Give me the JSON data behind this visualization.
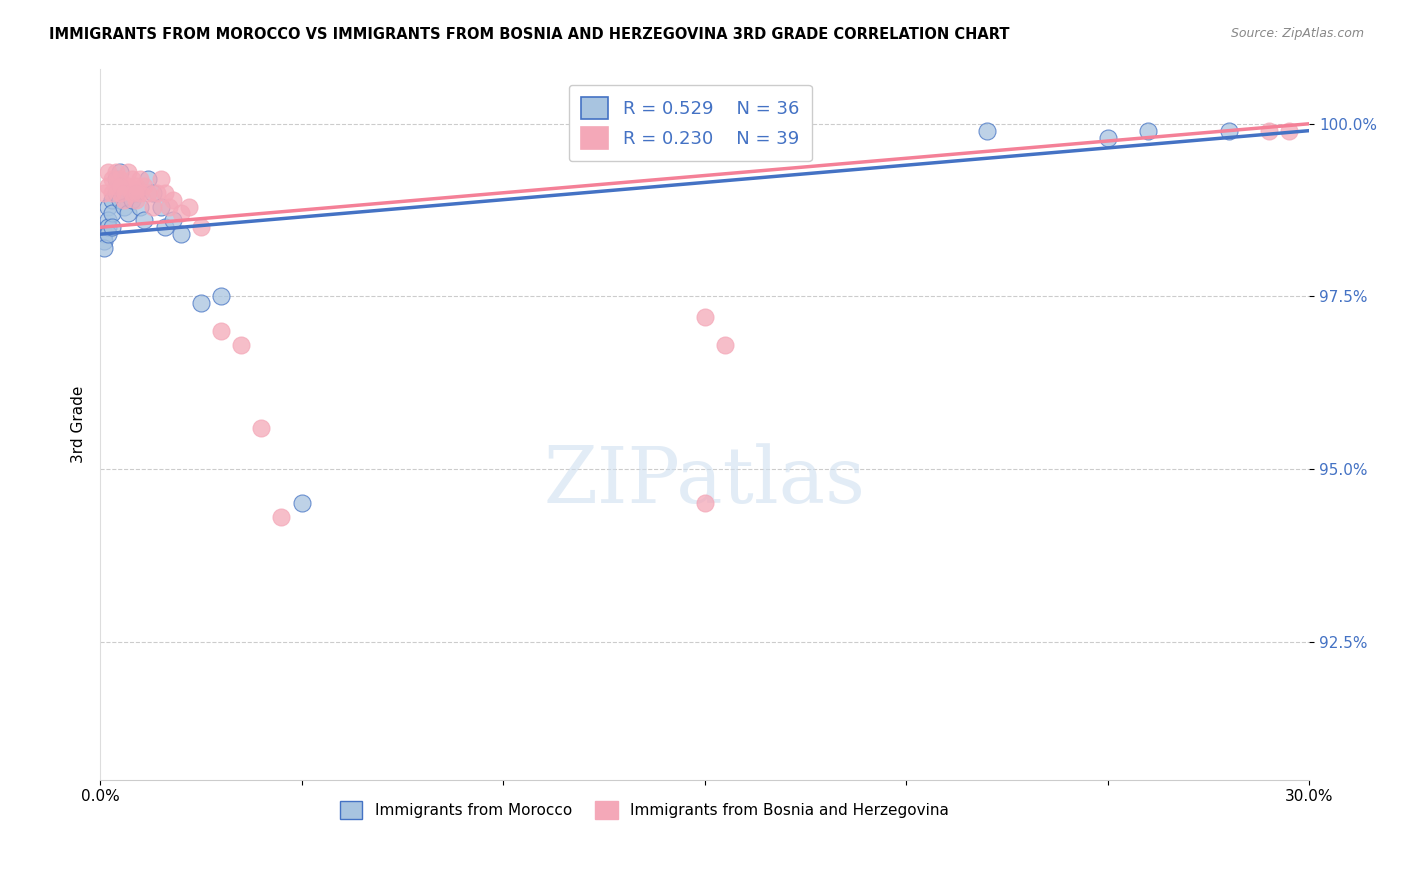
{
  "title": "IMMIGRANTS FROM MOROCCO VS IMMIGRANTS FROM BOSNIA AND HERZEGOVINA 3RD GRADE CORRELATION CHART",
  "source": "Source: ZipAtlas.com",
  "ylabel": "3rd Grade",
  "xlim": [
    0.0,
    0.3
  ],
  "ylim": [
    0.905,
    1.008
  ],
  "yticks": [
    0.925,
    0.95,
    0.975,
    1.0
  ],
  "ytick_labels": [
    "92.5%",
    "95.0%",
    "97.5%",
    "100.0%"
  ],
  "xticks": [
    0.0,
    0.05,
    0.1,
    0.15,
    0.2,
    0.25,
    0.3
  ],
  "xtick_labels": [
    "0.0%",
    "",
    "",
    "",
    "",
    "",
    "30.0%"
  ],
  "color_morocco": "#a8c4e0",
  "color_bosnia": "#f4a8b8",
  "color_line_morocco": "#4472c4",
  "color_line_bosnia": "#f48097",
  "morocco_x": [
    0.001,
    0.001,
    0.001,
    0.002,
    0.002,
    0.002,
    0.002,
    0.003,
    0.003,
    0.003,
    0.004,
    0.004,
    0.005,
    0.005,
    0.005,
    0.006,
    0.006,
    0.007,
    0.008,
    0.009,
    0.01,
    0.011,
    0.012,
    0.013,
    0.015,
    0.016,
    0.018,
    0.02,
    0.025,
    0.03,
    0.05,
    0.16,
    0.22,
    0.25,
    0.26,
    0.28
  ],
  "morocco_y": [
    0.984,
    0.983,
    0.982,
    0.988,
    0.986,
    0.985,
    0.984,
    0.989,
    0.987,
    0.985,
    0.992,
    0.99,
    0.993,
    0.991,
    0.989,
    0.99,
    0.988,
    0.987,
    0.989,
    0.99,
    0.988,
    0.986,
    0.992,
    0.99,
    0.988,
    0.985,
    0.986,
    0.984,
    0.974,
    0.975,
    0.945,
    0.999,
    0.999,
    0.998,
    0.999,
    0.999
  ],
  "bosnia_x": [
    0.001,
    0.002,
    0.002,
    0.003,
    0.003,
    0.004,
    0.004,
    0.005,
    0.005,
    0.006,
    0.006,
    0.007,
    0.007,
    0.008,
    0.008,
    0.009,
    0.009,
    0.01,
    0.01,
    0.011,
    0.012,
    0.013,
    0.014,
    0.015,
    0.016,
    0.017,
    0.018,
    0.02,
    0.022,
    0.025,
    0.03,
    0.035,
    0.04,
    0.045,
    0.15,
    0.155,
    0.29,
    0.295,
    0.15
  ],
  "bosnia_y": [
    0.99,
    0.993,
    0.991,
    0.992,
    0.99,
    0.993,
    0.991,
    0.992,
    0.99,
    0.991,
    0.989,
    0.993,
    0.991,
    0.992,
    0.99,
    0.991,
    0.989,
    0.992,
    0.99,
    0.991,
    0.99,
    0.988,
    0.99,
    0.992,
    0.99,
    0.988,
    0.989,
    0.987,
    0.988,
    0.985,
    0.97,
    0.968,
    0.956,
    0.943,
    0.972,
    0.968,
    0.999,
    0.999,
    0.945
  ]
}
